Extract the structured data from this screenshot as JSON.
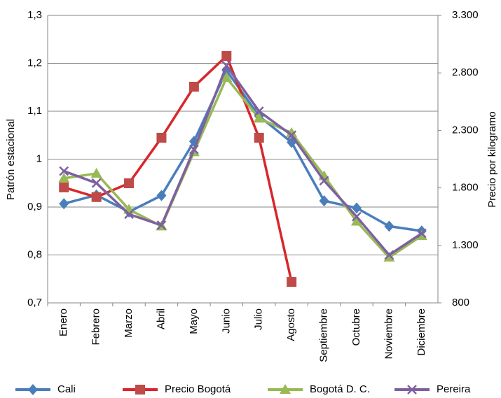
{
  "chart_data": {
    "type": "line",
    "y_label": "Patrón estacional",
    "y2_label": "Precio por kilogramo",
    "categories": [
      "Enero",
      "Febrero",
      "Marzo",
      "Abril",
      "Mayo",
      "Junio",
      "Julio",
      "Agosto",
      "Septiembre",
      "Octubre",
      "Noviembre",
      "Diciembre"
    ],
    "ylim": [
      0.7,
      1.3
    ],
    "yticks": [
      {
        "value": 0.7,
        "label": "0,7"
      },
      {
        "value": 0.8,
        "label": "0,8"
      },
      {
        "value": 0.9,
        "label": "0,9"
      },
      1,
      {
        "value": 1.1,
        "label": "1,1"
      },
      {
        "value": 1.2,
        "label": "1,2"
      },
      {
        "value": 1.3,
        "label": "1,3"
      }
    ],
    "y2lim": [
      800,
      3300
    ],
    "y2ticks": [
      800,
      {
        "value": 1300,
        "label": "1.300"
      },
      {
        "value": 1800,
        "label": "1.800"
      },
      {
        "value": 2300,
        "label": "2.300"
      },
      {
        "value": 2800,
        "label": "2.800"
      },
      {
        "value": 3300,
        "label": "3.300"
      }
    ],
    "grid": true,
    "legend": "bottom",
    "series": [
      {
        "name": "Cali",
        "color": "#4a7ebb",
        "marker": "diamond",
        "values": [
          0.907,
          0.925,
          0.89,
          0.924,
          1.037,
          1.185,
          1.09,
          1.035,
          0.913,
          0.898,
          0.86,
          0.85
        ]
      },
      {
        "name": "Precio Bogotá",
        "color": "#d9262b",
        "marker": "square",
        "axis": "y2",
        "values": [
          1804,
          1720,
          1840,
          2236,
          2680,
          2947,
          2236,
          982,
          null,
          null,
          null,
          null
        ]
      },
      {
        "name": "Bogotá D. C.",
        "color": "#98b954",
        "marker": "triangle",
        "values": [
          0.96,
          0.97,
          0.895,
          0.86,
          1.015,
          1.17,
          1.085,
          1.055,
          0.965,
          0.87,
          0.795,
          0.84
        ]
      },
      {
        "name": "Pereira",
        "color": "#7d60a0",
        "marker": "x",
        "values": [
          0.975,
          0.95,
          0.885,
          0.862,
          1.02,
          1.195,
          1.1,
          1.05,
          0.955,
          0.88,
          0.8,
          0.845
        ]
      }
    ]
  }
}
